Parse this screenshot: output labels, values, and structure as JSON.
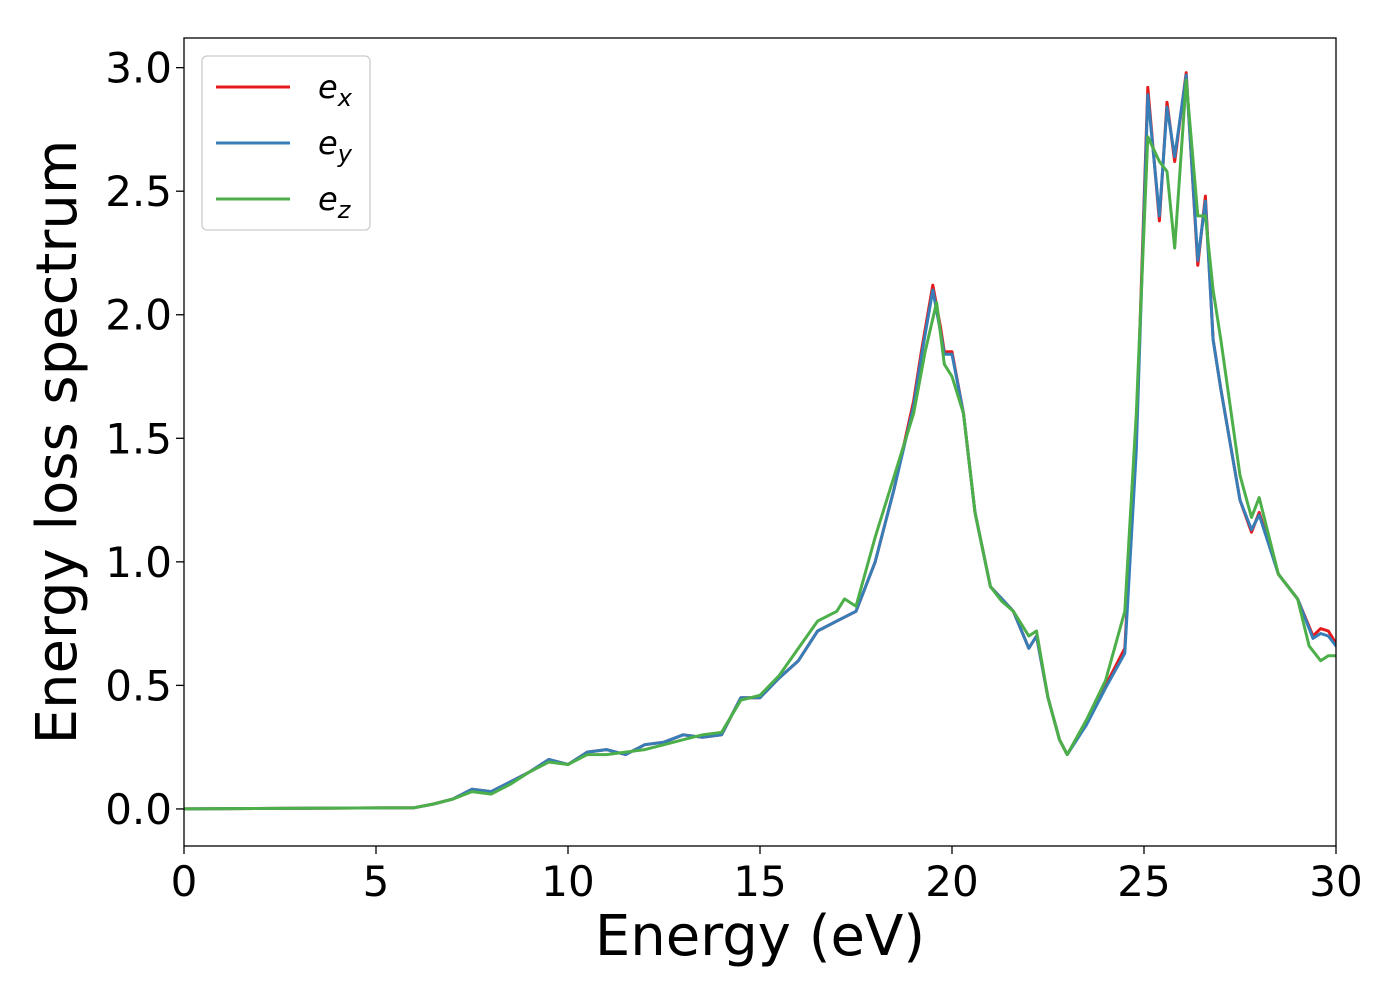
{
  "chart_data": {
    "type": "line",
    "title": "",
    "xlabel": "Energy (eV)",
    "ylabel": "Energy loss spectrum",
    "xlim": [
      0,
      30
    ],
    "ylim": [
      -0.15,
      3.12
    ],
    "xticks": [
      0,
      5,
      10,
      15,
      20,
      25,
      30
    ],
    "xtick_labels": [
      "0",
      "5",
      "10",
      "15",
      "20",
      "25",
      "30"
    ],
    "yticks": [
      0.0,
      0.5,
      1.0,
      1.5,
      2.0,
      2.5,
      3.0
    ],
    "ytick_labels": [
      "0.0",
      "0.5",
      "1.0",
      "1.5",
      "2.0",
      "2.5",
      "3.0"
    ],
    "grid": false,
    "legend_position": "top-left",
    "series": [
      {
        "name": "e_x",
        "base": "e",
        "sub": "x",
        "color": "#e41a1c",
        "points": [
          [
            0,
            0.0
          ],
          [
            6.0,
            0.005
          ],
          [
            6.5,
            0.02
          ],
          [
            7.0,
            0.04
          ],
          [
            7.5,
            0.08
          ],
          [
            8.0,
            0.07
          ],
          [
            8.5,
            0.11
          ],
          [
            9.0,
            0.15
          ],
          [
            9.5,
            0.2
          ],
          [
            10.0,
            0.18
          ],
          [
            10.5,
            0.23
          ],
          [
            11.0,
            0.24
          ],
          [
            11.5,
            0.22
          ],
          [
            12.0,
            0.26
          ],
          [
            12.5,
            0.27
          ],
          [
            13.0,
            0.3
          ],
          [
            13.5,
            0.29
          ],
          [
            14.0,
            0.3
          ],
          [
            14.5,
            0.45
          ],
          [
            15.0,
            0.45
          ],
          [
            15.5,
            0.53
          ],
          [
            16.0,
            0.6
          ],
          [
            16.5,
            0.72
          ],
          [
            17.0,
            0.76
          ],
          [
            17.5,
            0.8
          ],
          [
            18.0,
            1.0
          ],
          [
            18.5,
            1.3
          ],
          [
            19.0,
            1.65
          ],
          [
            19.2,
            1.85
          ],
          [
            19.5,
            2.12
          ],
          [
            19.7,
            1.95
          ],
          [
            19.8,
            1.85
          ],
          [
            20.0,
            1.85
          ],
          [
            20.3,
            1.6
          ],
          [
            20.6,
            1.2
          ],
          [
            21.0,
            0.9
          ],
          [
            21.3,
            0.85
          ],
          [
            21.6,
            0.8
          ],
          [
            22.0,
            0.65
          ],
          [
            22.2,
            0.7
          ],
          [
            22.5,
            0.45
          ],
          [
            22.8,
            0.28
          ],
          [
            23.0,
            0.22
          ],
          [
            23.5,
            0.35
          ],
          [
            24.0,
            0.5
          ],
          [
            24.5,
            0.65
          ],
          [
            24.8,
            1.5
          ],
          [
            25.1,
            2.92
          ],
          [
            25.4,
            2.38
          ],
          [
            25.6,
            2.86
          ],
          [
            25.8,
            2.62
          ],
          [
            26.1,
            2.98
          ],
          [
            26.4,
            2.2
          ],
          [
            26.6,
            2.48
          ],
          [
            26.8,
            1.9
          ],
          [
            27.0,
            1.7
          ],
          [
            27.5,
            1.25
          ],
          [
            27.8,
            1.12
          ],
          [
            28.0,
            1.2
          ],
          [
            28.5,
            0.95
          ],
          [
            29.0,
            0.85
          ],
          [
            29.4,
            0.7
          ],
          [
            29.6,
            0.73
          ],
          [
            29.8,
            0.72
          ],
          [
            30.0,
            0.67
          ]
        ]
      },
      {
        "name": "e_y",
        "base": "e",
        "sub": "y",
        "color": "#377eb8",
        "points": [
          [
            0,
            0.0
          ],
          [
            6.0,
            0.005
          ],
          [
            6.5,
            0.02
          ],
          [
            7.0,
            0.04
          ],
          [
            7.5,
            0.08
          ],
          [
            8.0,
            0.07
          ],
          [
            8.5,
            0.11
          ],
          [
            9.0,
            0.15
          ],
          [
            9.5,
            0.2
          ],
          [
            10.0,
            0.18
          ],
          [
            10.5,
            0.23
          ],
          [
            11.0,
            0.24
          ],
          [
            11.5,
            0.22
          ],
          [
            12.0,
            0.26
          ],
          [
            12.5,
            0.27
          ],
          [
            13.0,
            0.3
          ],
          [
            13.5,
            0.29
          ],
          [
            14.0,
            0.3
          ],
          [
            14.5,
            0.45
          ],
          [
            15.0,
            0.45
          ],
          [
            15.5,
            0.53
          ],
          [
            16.0,
            0.6
          ],
          [
            16.5,
            0.72
          ],
          [
            17.0,
            0.76
          ],
          [
            17.5,
            0.8
          ],
          [
            18.0,
            1.0
          ],
          [
            18.5,
            1.3
          ],
          [
            19.0,
            1.63
          ],
          [
            19.2,
            1.83
          ],
          [
            19.5,
            2.1
          ],
          [
            19.7,
            1.93
          ],
          [
            19.8,
            1.84
          ],
          [
            20.0,
            1.84
          ],
          [
            20.3,
            1.6
          ],
          [
            20.6,
            1.2
          ],
          [
            21.0,
            0.9
          ],
          [
            21.3,
            0.85
          ],
          [
            21.6,
            0.8
          ],
          [
            22.0,
            0.65
          ],
          [
            22.2,
            0.7
          ],
          [
            22.5,
            0.45
          ],
          [
            22.8,
            0.28
          ],
          [
            23.0,
            0.22
          ],
          [
            23.5,
            0.34
          ],
          [
            24.0,
            0.49
          ],
          [
            24.5,
            0.63
          ],
          [
            24.8,
            1.45
          ],
          [
            25.1,
            2.89
          ],
          [
            25.4,
            2.4
          ],
          [
            25.6,
            2.84
          ],
          [
            25.8,
            2.64
          ],
          [
            26.1,
            2.97
          ],
          [
            26.4,
            2.22
          ],
          [
            26.6,
            2.46
          ],
          [
            26.8,
            1.9
          ],
          [
            27.0,
            1.7
          ],
          [
            27.5,
            1.25
          ],
          [
            27.8,
            1.13
          ],
          [
            28.0,
            1.19
          ],
          [
            28.5,
            0.95
          ],
          [
            29.0,
            0.85
          ],
          [
            29.4,
            0.69
          ],
          [
            29.6,
            0.71
          ],
          [
            29.8,
            0.7
          ],
          [
            30.0,
            0.66
          ]
        ]
      },
      {
        "name": "e_z",
        "base": "e",
        "sub": "z",
        "color": "#4daf4a",
        "points": [
          [
            0,
            0.0
          ],
          [
            6.0,
            0.005
          ],
          [
            6.5,
            0.02
          ],
          [
            7.0,
            0.04
          ],
          [
            7.5,
            0.07
          ],
          [
            8.0,
            0.06
          ],
          [
            8.5,
            0.1
          ],
          [
            9.0,
            0.15
          ],
          [
            9.5,
            0.19
          ],
          [
            10.0,
            0.18
          ],
          [
            10.5,
            0.22
          ],
          [
            11.0,
            0.22
          ],
          [
            11.5,
            0.23
          ],
          [
            12.0,
            0.24
          ],
          [
            12.5,
            0.26
          ],
          [
            13.0,
            0.28
          ],
          [
            13.5,
            0.3
          ],
          [
            14.0,
            0.31
          ],
          [
            14.5,
            0.44
          ],
          [
            15.0,
            0.46
          ],
          [
            15.5,
            0.54
          ],
          [
            16.0,
            0.65
          ],
          [
            16.5,
            0.76
          ],
          [
            17.0,
            0.8
          ],
          [
            17.2,
            0.85
          ],
          [
            17.5,
            0.82
          ],
          [
            18.0,
            1.1
          ],
          [
            18.5,
            1.35
          ],
          [
            19.0,
            1.6
          ],
          [
            19.3,
            1.85
          ],
          [
            19.6,
            2.05
          ],
          [
            19.8,
            1.8
          ],
          [
            20.0,
            1.75
          ],
          [
            20.3,
            1.6
          ],
          [
            20.6,
            1.2
          ],
          [
            21.0,
            0.9
          ],
          [
            21.3,
            0.84
          ],
          [
            21.6,
            0.8
          ],
          [
            22.0,
            0.7
          ],
          [
            22.2,
            0.72
          ],
          [
            22.5,
            0.45
          ],
          [
            22.8,
            0.28
          ],
          [
            23.0,
            0.22
          ],
          [
            23.5,
            0.36
          ],
          [
            24.0,
            0.52
          ],
          [
            24.5,
            0.8
          ],
          [
            24.8,
            1.6
          ],
          [
            25.1,
            2.72
          ],
          [
            25.4,
            2.62
          ],
          [
            25.6,
            2.58
          ],
          [
            25.8,
            2.27
          ],
          [
            26.1,
            2.95
          ],
          [
            26.4,
            2.4
          ],
          [
            26.6,
            2.4
          ],
          [
            26.8,
            2.1
          ],
          [
            27.0,
            1.9
          ],
          [
            27.5,
            1.35
          ],
          [
            27.8,
            1.18
          ],
          [
            28.0,
            1.26
          ],
          [
            28.5,
            0.95
          ],
          [
            29.0,
            0.85
          ],
          [
            29.3,
            0.66
          ],
          [
            29.6,
            0.6
          ],
          [
            29.8,
            0.62
          ],
          [
            30.0,
            0.62
          ]
        ]
      }
    ]
  }
}
